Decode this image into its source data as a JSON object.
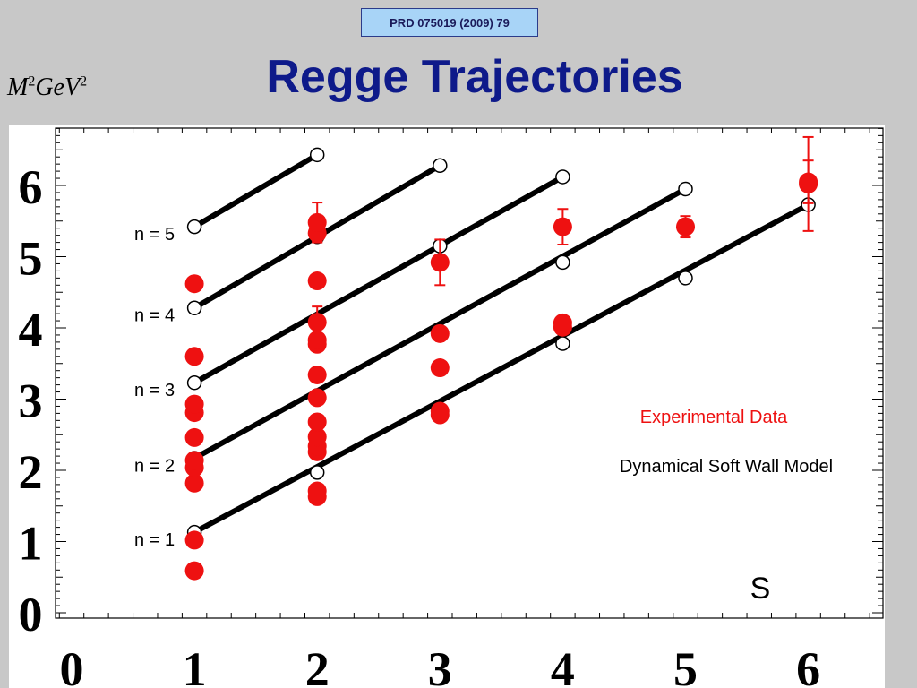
{
  "reference": "PRD 075019 (2009) 79",
  "title": "Regge Trajectories",
  "y_axis_label": {
    "base": "M",
    "exp": "2",
    "open": "\u0001",
    "unit": "GeV",
    "unit_exp": "2",
    "close": "\u0001"
  },
  "chart_data": {
    "type": "scatter",
    "xlabel": "S",
    "ylabel": "M2(GeV2)",
    "xlim": [
      0,
      6
    ],
    "ylim": [
      0,
      6.7
    ],
    "x_ticks": [
      0,
      1,
      2,
      3,
      4,
      5,
      6
    ],
    "y_ticks": [
      0,
      1,
      2,
      3,
      4,
      5,
      6
    ],
    "legend": [
      "Experimental Data",
      "Dynamical Soft Wall Model"
    ],
    "legend_placement": "right",
    "colors": {
      "experimental": "#ee1111",
      "model": "#000000",
      "title": "#0e1a8a"
    },
    "model_trajectories": [
      {
        "label": "n = 1",
        "points": [
          [
            1,
            1.13
          ],
          [
            2,
            1.97
          ],
          [
            3,
            2.82
          ],
          [
            4,
            3.78
          ],
          [
            5,
            4.7
          ],
          [
            6,
            5.73
          ]
        ]
      },
      {
        "label": "n = 2",
        "points": [
          [
            1,
            2.17
          ],
          [
            2,
            3.05
          ],
          [
            3,
            3.95
          ],
          [
            4,
            4.92
          ],
          [
            5,
            5.95
          ]
        ]
      },
      {
        "label": "n = 3",
        "points": [
          [
            1,
            3.23
          ],
          [
            2,
            4.1
          ],
          [
            3,
            5.15
          ],
          [
            4,
            6.12
          ]
        ]
      },
      {
        "label": "n = 4",
        "points": [
          [
            1,
            4.28
          ],
          [
            2,
            5.28
          ],
          [
            3,
            6.28
          ]
        ]
      },
      {
        "label": "n = 5",
        "points": [
          [
            1,
            5.42
          ],
          [
            2,
            6.43
          ]
        ]
      }
    ],
    "experimental": [
      {
        "x": 1,
        "y": 0.59
      },
      {
        "x": 1,
        "y": 1.02
      },
      {
        "x": 1,
        "y": 1.82
      },
      {
        "x": 1,
        "y": 2.04
      },
      {
        "x": 1,
        "y": 2.14
      },
      {
        "x": 1,
        "y": 2.46
      },
      {
        "x": 1,
        "y": 2.81
      },
      {
        "x": 1,
        "y": 2.93
      },
      {
        "x": 1,
        "y": 3.6
      },
      {
        "x": 1,
        "y": 4.62
      },
      {
        "x": 2,
        "y": 1.63
      },
      {
        "x": 2,
        "y": 1.71
      },
      {
        "x": 2,
        "y": 2.26
      },
      {
        "x": 2,
        "y": 2.34
      },
      {
        "x": 2,
        "y": 2.47
      },
      {
        "x": 2,
        "y": 2.68
      },
      {
        "x": 2,
        "y": 3.02
      },
      {
        "x": 2,
        "y": 3.34
      },
      {
        "x": 2,
        "y": 3.77
      },
      {
        "x": 2,
        "y": 3.83
      },
      {
        "x": 2,
        "y": 4.08,
        "err": 0.22
      },
      {
        "x": 2,
        "y": 4.66
      },
      {
        "x": 2,
        "y": 5.33,
        "err": 0.12
      },
      {
        "x": 2,
        "y": 5.48,
        "err": 0.28
      },
      {
        "x": 3,
        "y": 2.78
      },
      {
        "x": 3,
        "y": 2.83
      },
      {
        "x": 3,
        "y": 3.44
      },
      {
        "x": 3,
        "y": 3.92
      },
      {
        "x": 3,
        "y": 4.92,
        "err": 0.32
      },
      {
        "x": 4,
        "y": 4.01
      },
      {
        "x": 4,
        "y": 4.07
      },
      {
        "x": 4,
        "y": 5.42,
        "err": 0.25
      },
      {
        "x": 5,
        "y": 5.42,
        "err": 0.15
      },
      {
        "x": 6,
        "y": 6.02,
        "err": 0.66
      },
      {
        "x": 6,
        "y": 6.05,
        "err": 0.3
      }
    ]
  }
}
